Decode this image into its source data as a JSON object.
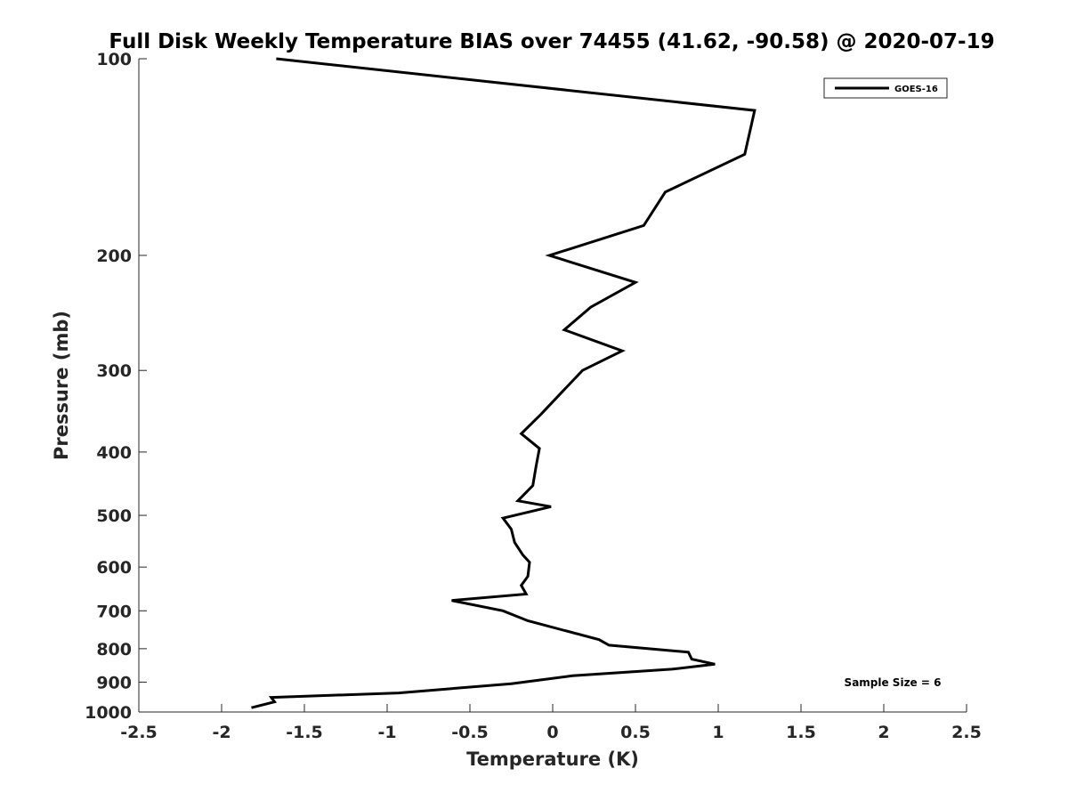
{
  "chart_data": {
    "type": "line",
    "title": "Full Disk Weekly Temperature BIAS over 74455 (41.62, -90.58) @ 2020-07-19",
    "xlabel": "Temperature (K)",
    "ylabel": "Pressure (mb)",
    "xlim": [
      -2.5,
      2.5
    ],
    "ylim": [
      100,
      1000
    ],
    "y_scale": "log",
    "y_reversed": true,
    "x_ticks": [
      "-2.5",
      "-2",
      "-1.5",
      "-1",
      "-0.5",
      "0",
      "0.5",
      "1",
      "1.5",
      "2",
      "2.5"
    ],
    "y_ticks": [
      "100",
      "200",
      "300",
      "400",
      "500",
      "600",
      "700",
      "800",
      "900",
      "1000"
    ],
    "grid": false,
    "legend_position": "top-right",
    "series": [
      {
        "name": "GOES-16",
        "color": "#000000",
        "points": [
          {
            "x": -1.67,
            "y": 100
          },
          {
            "x": 1.22,
            "y": 120
          },
          {
            "x": 1.16,
            "y": 140
          },
          {
            "x": 0.68,
            "y": 160
          },
          {
            "x": 0.55,
            "y": 180
          },
          {
            "x": -0.02,
            "y": 200
          },
          {
            "x": 0.5,
            "y": 220
          },
          {
            "x": 0.23,
            "y": 240
          },
          {
            "x": 0.07,
            "y": 260
          },
          {
            "x": 0.42,
            "y": 280
          },
          {
            "x": 0.18,
            "y": 300
          },
          {
            "x": 0.05,
            "y": 325
          },
          {
            "x": -0.07,
            "y": 350
          },
          {
            "x": -0.19,
            "y": 375
          },
          {
            "x": -0.08,
            "y": 395
          },
          {
            "x": -0.1,
            "y": 420
          },
          {
            "x": -0.12,
            "y": 450
          },
          {
            "x": -0.21,
            "y": 475
          },
          {
            "x": -0.01,
            "y": 485
          },
          {
            "x": -0.3,
            "y": 505
          },
          {
            "x": -0.25,
            "y": 525
          },
          {
            "x": -0.23,
            "y": 550
          },
          {
            "x": -0.18,
            "y": 575
          },
          {
            "x": -0.14,
            "y": 590
          },
          {
            "x": -0.15,
            "y": 620
          },
          {
            "x": -0.19,
            "y": 640
          },
          {
            "x": -0.16,
            "y": 660
          },
          {
            "x": -0.61,
            "y": 675
          },
          {
            "x": -0.3,
            "y": 700
          },
          {
            "x": -0.15,
            "y": 725
          },
          {
            "x": 0.28,
            "y": 775
          },
          {
            "x": 0.34,
            "y": 790
          },
          {
            "x": 0.82,
            "y": 810
          },
          {
            "x": 0.84,
            "y": 830
          },
          {
            "x": 0.98,
            "y": 845
          },
          {
            "x": 0.72,
            "y": 860
          },
          {
            "x": 0.12,
            "y": 880
          },
          {
            "x": -0.25,
            "y": 905
          },
          {
            "x": -0.93,
            "y": 935
          },
          {
            "x": -1.7,
            "y": 950
          },
          {
            "x": -1.68,
            "y": 965
          },
          {
            "x": -1.82,
            "y": 985
          }
        ]
      }
    ],
    "annotation": "Sample Size = 6"
  }
}
